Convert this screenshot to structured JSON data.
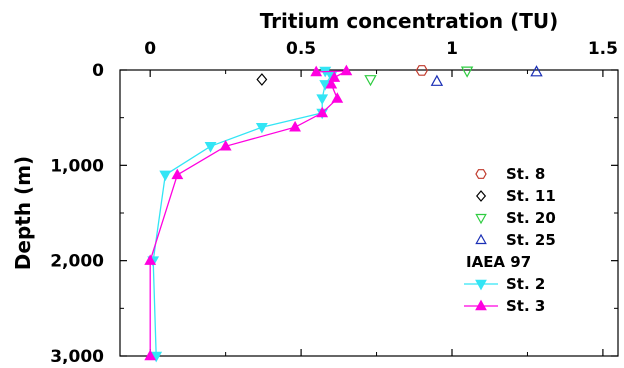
{
  "chart_data": {
    "type": "scatter",
    "title": "Tritium  concentration (TU)",
    "xlabel": "",
    "ylabel": "Depth (m)",
    "xlim": [
      -0.1,
      1.55
    ],
    "ylim": [
      0,
      3000
    ],
    "y_inverted": true,
    "x_axis_position": "top",
    "x_ticks": [
      0,
      0.5,
      1,
      1.5
    ],
    "x_tick_labels": [
      "0",
      "0.5",
      "1",
      "1.5"
    ],
    "y_ticks": [
      0,
      1000,
      2000,
      3000
    ],
    "y_tick_labels": [
      "0",
      "1,000",
      "2,000",
      "3,000"
    ],
    "grid": false,
    "legend_position": "right",
    "legend_group_label": "IAEA 97",
    "series": [
      {
        "name": "St. 8",
        "marker": "hexagon",
        "filled": false,
        "line": false,
        "color": "#c0392b",
        "points": [
          [
            0.9,
            5
          ]
        ]
      },
      {
        "name": "St. 11",
        "marker": "diamond",
        "filled": false,
        "line": false,
        "color": "#000000",
        "points": [
          [
            0.37,
            100
          ]
        ]
      },
      {
        "name": "St. 20",
        "marker": "triangle-down",
        "filled": false,
        "line": false,
        "color": "#2ecc40",
        "points": [
          [
            0.73,
            100
          ],
          [
            1.05,
            10
          ]
        ]
      },
      {
        "name": "St. 25",
        "marker": "triangle-up",
        "filled": false,
        "line": false,
        "color": "#1a2fb5",
        "points": [
          [
            0.95,
            120
          ],
          [
            1.28,
            20
          ]
        ]
      },
      {
        "name": "St. 2",
        "marker": "triangle-down",
        "filled": true,
        "line": true,
        "color": "#33e5f5",
        "points": [
          [
            0.58,
            10
          ],
          [
            0.6,
            60
          ],
          [
            0.58,
            150
          ],
          [
            0.57,
            300
          ],
          [
            0.57,
            450
          ],
          [
            0.37,
            600
          ],
          [
            0.2,
            800
          ],
          [
            0.05,
            1100
          ],
          [
            0.01,
            2000
          ],
          [
            0.02,
            3000
          ]
        ]
      },
      {
        "name": "St. 3",
        "marker": "triangle-up",
        "filled": true,
        "line": true,
        "color": "#ff00e0",
        "points": [
          [
            0.55,
            20
          ],
          [
            0.65,
            10
          ],
          [
            0.61,
            80
          ],
          [
            0.6,
            150
          ],
          [
            0.62,
            300
          ],
          [
            0.57,
            450
          ],
          [
            0.48,
            600
          ],
          [
            0.25,
            800
          ],
          [
            0.09,
            1100
          ],
          [
            0.0,
            2000
          ],
          [
            0.0,
            3000
          ]
        ]
      }
    ]
  }
}
